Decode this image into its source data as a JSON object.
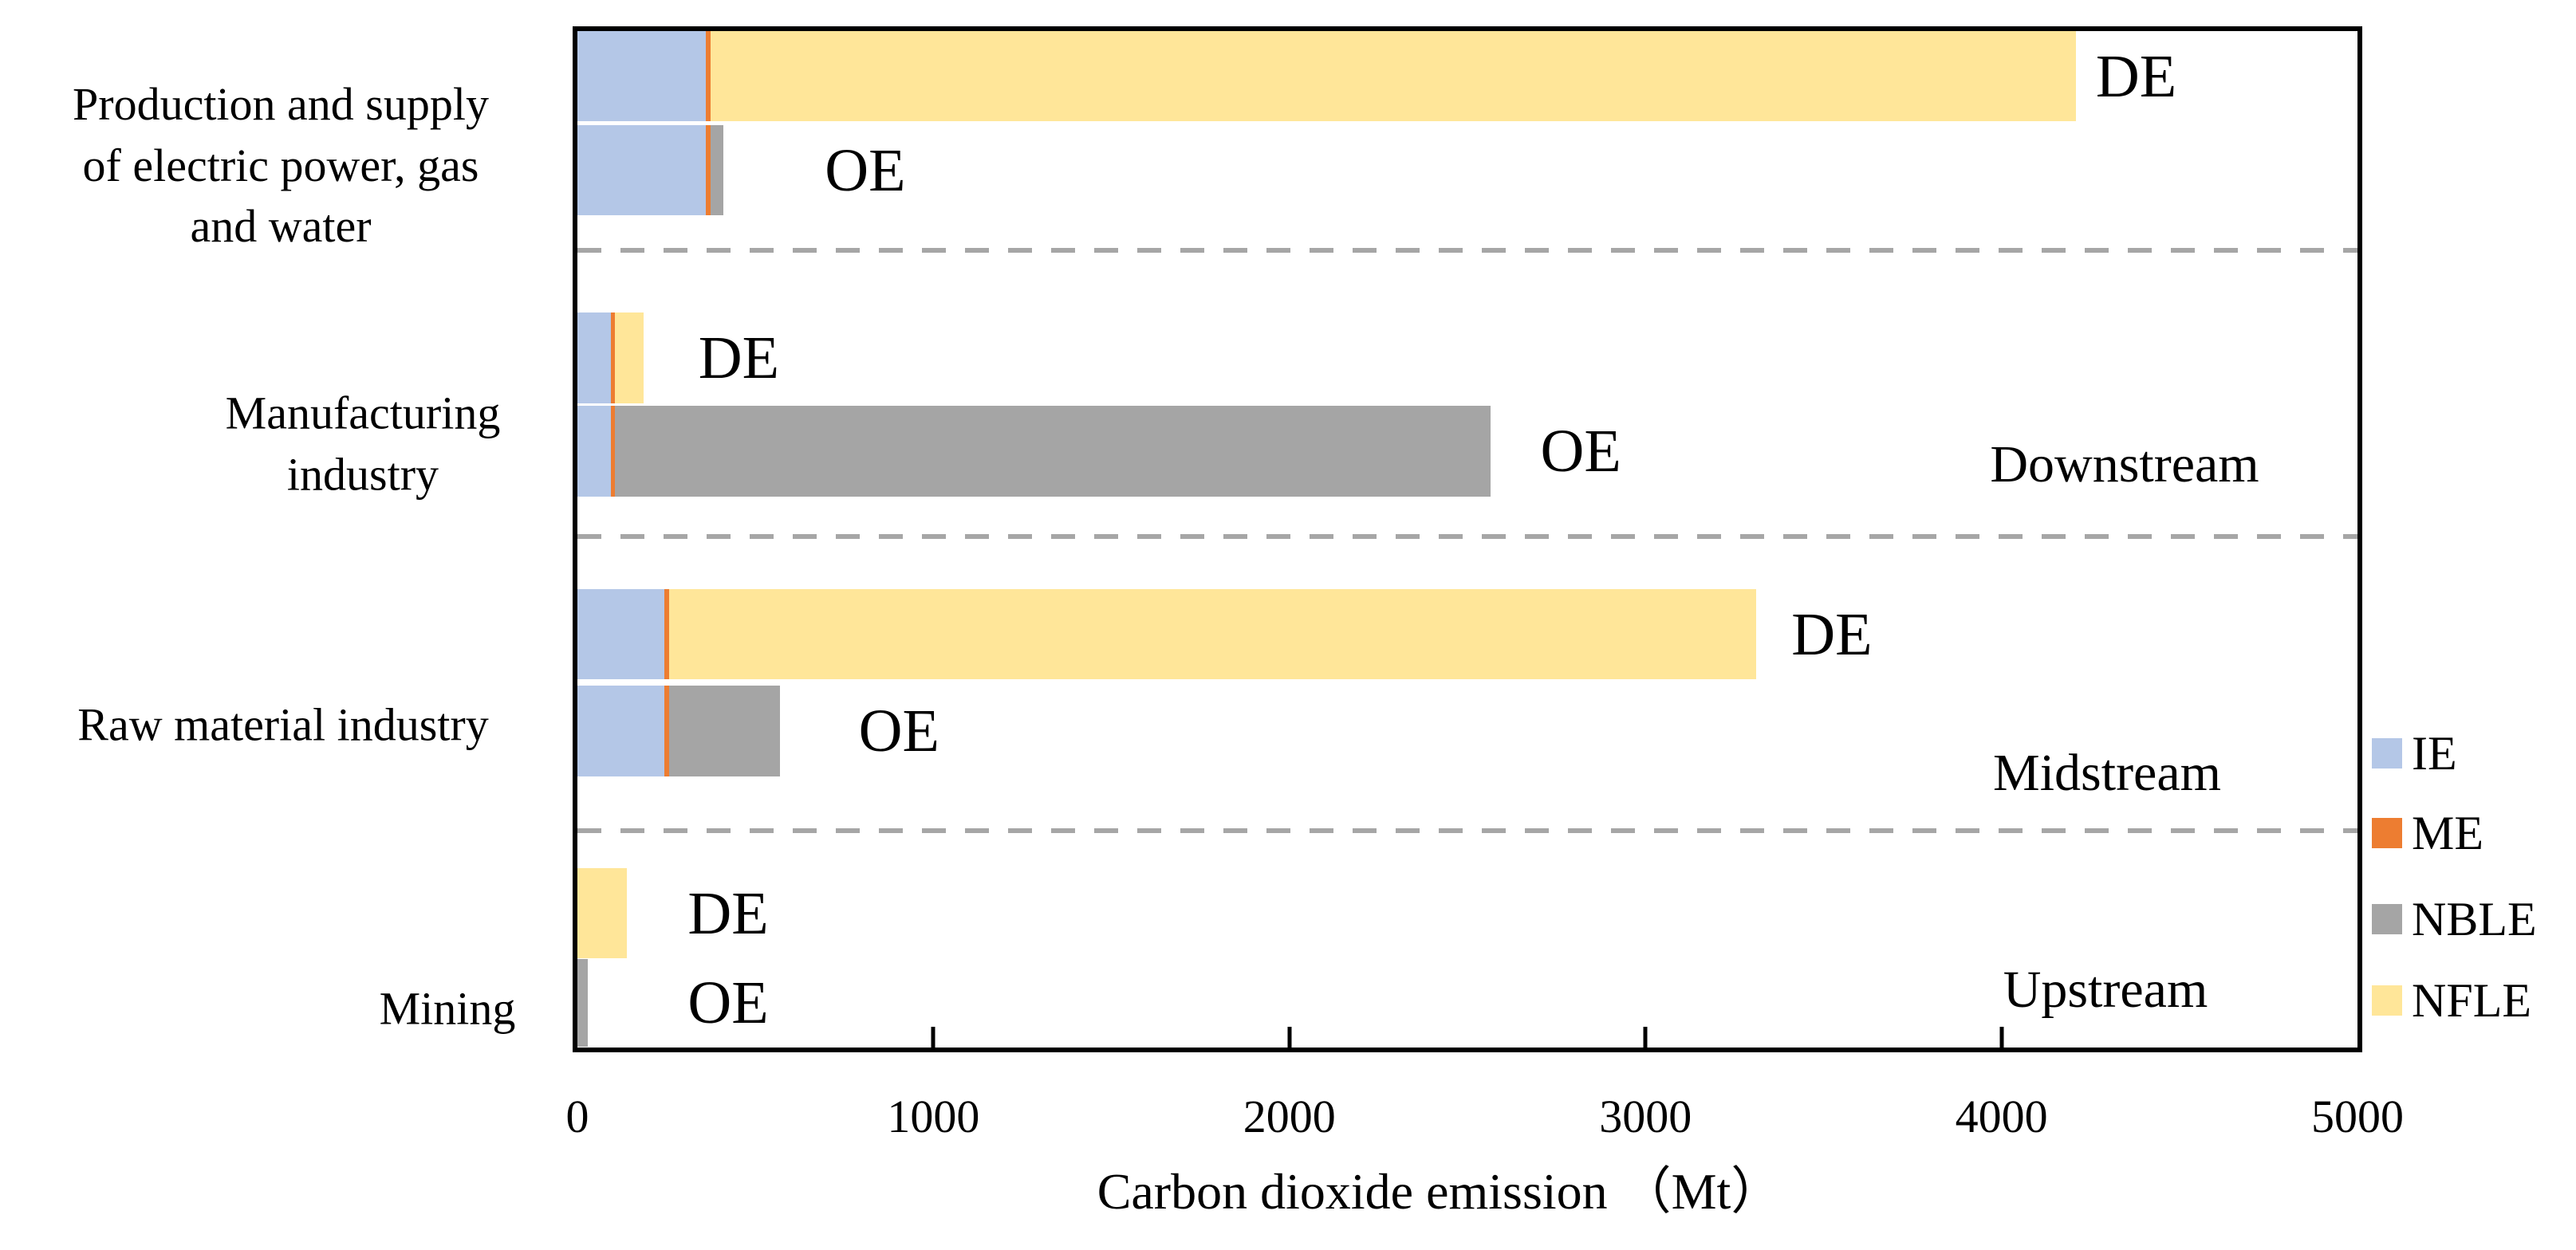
{
  "chart_data": {
    "type": "bar",
    "orientation": "horizontal",
    "stacked": true,
    "title": "",
    "xlabel": "Carbon dioxide emission （Mt）",
    "ylabel": "",
    "xlim": [
      0,
      5000
    ],
    "x_ticks": [
      0,
      1000,
      2000,
      3000,
      4000,
      5000
    ],
    "unit": "Mt",
    "grid": false,
    "legend": {
      "position": "right",
      "entries": [
        {
          "label": "IE",
          "color": "#b4c7e7"
        },
        {
          "label": "ME",
          "color": "#ed7d31"
        },
        {
          "label": "NBLE",
          "color": "#a5a5a5"
        },
        {
          "label": "NFLE",
          "color": "#ffe699"
        }
      ]
    },
    "categories": [
      {
        "label": "Production and supply\nof electric power, gas\nand water",
        "bars": [
          {
            "name": "DE",
            "segments": {
              "IE": 360,
              "ME": 15,
              "NBLE": 0,
              "NFLE": 3835
            },
            "total": 4210
          },
          {
            "name": "OE",
            "segments": {
              "IE": 360,
              "ME": 15,
              "NBLE": 35,
              "NFLE": 0
            },
            "total": 410
          }
        ]
      },
      {
        "label": "Manufacturing\nindustry",
        "bars": [
          {
            "name": "DE",
            "segments": {
              "IE": 95,
              "ME": 10,
              "NBLE": 0,
              "NFLE": 80
            },
            "total": 185
          },
          {
            "name": "OE",
            "segments": {
              "IE": 95,
              "ME": 10,
              "NBLE": 2460,
              "NFLE": 0
            },
            "total": 2565
          }
        ]
      },
      {
        "label": "Raw material industry",
        "bars": [
          {
            "name": "DE",
            "segments": {
              "IE": 245,
              "ME": 12,
              "NBLE": 0,
              "NFLE": 3053
            },
            "total": 3310
          },
          {
            "name": "OE",
            "segments": {
              "IE": 245,
              "ME": 12,
              "NBLE": 313,
              "NFLE": 0
            },
            "total": 570
          }
        ]
      },
      {
        "label": "Mining",
        "bars": [
          {
            "name": "DE",
            "segments": {
              "IE": 0,
              "ME": 0,
              "NBLE": 0,
              "NFLE": 140
            },
            "total": 140
          },
          {
            "name": "OE",
            "segments": {
              "IE": 0,
              "ME": 0,
              "NBLE": 30,
              "NFLE": 0
            },
            "total": 30
          }
        ]
      }
    ],
    "annotations": {
      "streams": [
        "Downstream",
        "Midstream",
        "Upstream"
      ]
    },
    "colors": {
      "axis": "#000000",
      "separator": "#a6a6a6",
      "background": "#ffffff",
      "text": "#000000"
    }
  }
}
